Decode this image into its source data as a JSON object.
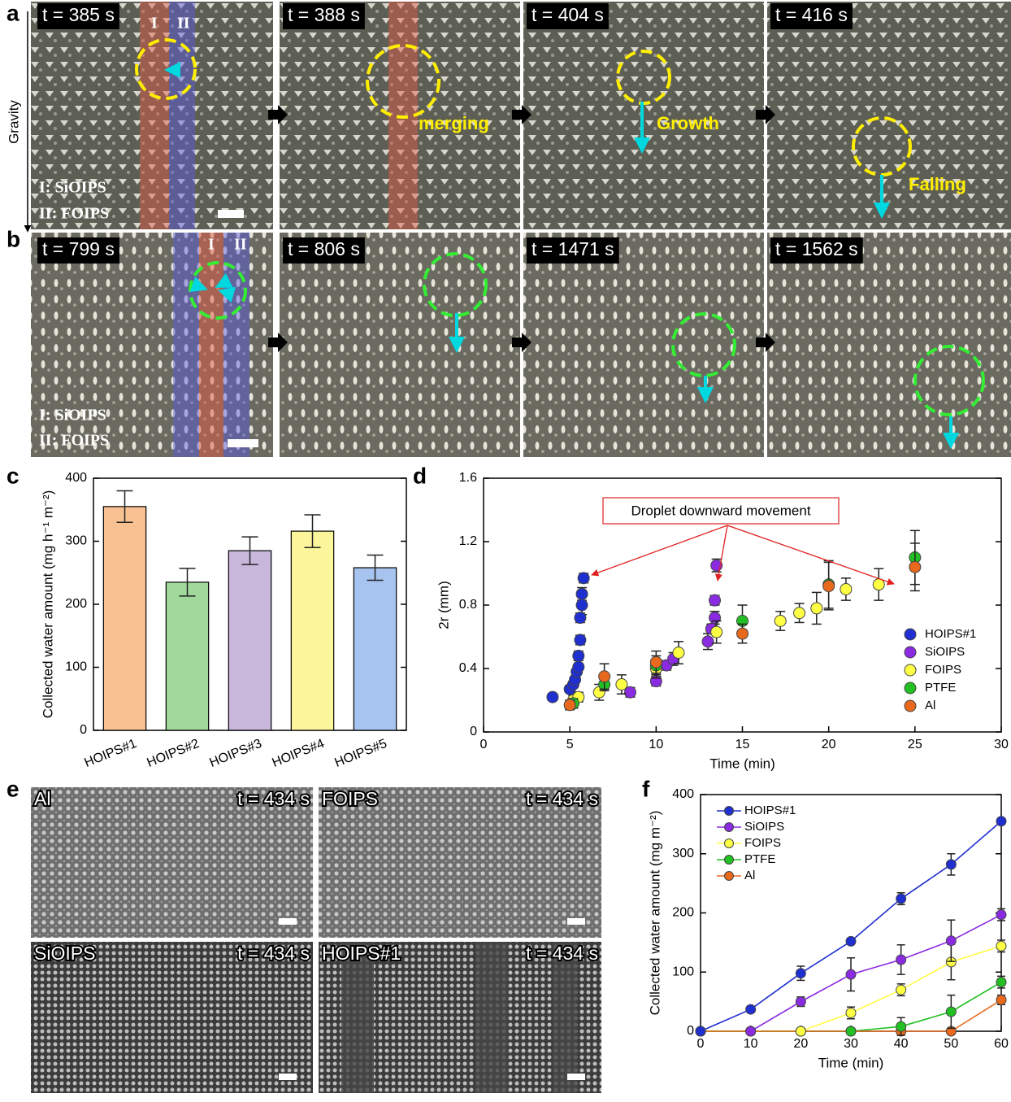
{
  "panels": {
    "a": {
      "letter": "a",
      "frames": [
        "t = 385 s",
        "t = 388 s",
        "t = 404 s",
        "t = 416 s"
      ],
      "band_labels": [
        "I",
        "II"
      ],
      "legend": [
        "I: SiOIPS",
        "II: FOIPS"
      ],
      "annotations": [
        "merging",
        "Growth",
        "Falling"
      ],
      "axis": "Gravity"
    },
    "b": {
      "letter": "b",
      "frames": [
        "t = 799 s",
        "t = 806 s",
        "t = 1471 s",
        "t = 1562 s"
      ],
      "band_labels": [
        "I",
        "II"
      ],
      "legend": [
        "I: SiOIPS",
        "II: FOIPS"
      ]
    },
    "e": {
      "letter": "e",
      "frames": [
        {
          "label": "Al",
          "time": "t = 434 s"
        },
        {
          "label": "FOIPS",
          "time": "t = 434 s"
        },
        {
          "label": "SiOIPS",
          "time": "t = 434 s"
        },
        {
          "label": "HOIPS#1",
          "time": "t = 434 s"
        }
      ]
    }
  },
  "chart_data": [
    {
      "type": "bar",
      "panel_letter": "c",
      "y_label": "Collected water amount (mg h⁻¹ m⁻²)",
      "categories": [
        "HOIPS#1",
        "HOIPS#2",
        "HOIPS#3",
        "HOIPS#4",
        "HOIPS#5"
      ],
      "values": [
        355,
        235,
        285,
        316,
        258
      ],
      "errors": [
        25,
        22,
        22,
        26,
        20
      ],
      "colors": [
        "#f8c192",
        "#a0d99b",
        "#c8b6db",
        "#fbf69c",
        "#a7c3ef"
      ],
      "ylim": [
        0,
        400
      ],
      "yticks": [
        0,
        100,
        200,
        300,
        400
      ]
    },
    {
      "type": "scatter",
      "panel_letter": "d",
      "x_label": "Time (min)",
      "y_label": "2r (mm)",
      "annotation": "Droplet downward movement",
      "xlim": [
        0,
        30
      ],
      "xticks": [
        0,
        5,
        10,
        15,
        20,
        25,
        30
      ],
      "ylim": [
        0,
        1.6
      ],
      "yticks": [
        0,
        0.4,
        0.8,
        1.2,
        1.6
      ],
      "legend": "right",
      "series": [
        {
          "name": "HOIPS#1",
          "color": "#1f2fd0",
          "x": [
            4,
            5,
            5.2,
            5.3,
            5.4,
            5.5,
            5.5,
            5.6,
            5.6,
            5.7,
            5.7,
            5.8
          ],
          "values": [
            0.22,
            0.27,
            0.3,
            0.33,
            0.38,
            0.41,
            0.48,
            0.58,
            0.72,
            0.8,
            0.87,
            0.97
          ],
          "errors": [
            0.02,
            0.02,
            0.02,
            0.02,
            0.02,
            0.02,
            0.03,
            0.03,
            0.03,
            0.06,
            0.04,
            0.03
          ]
        },
        {
          "name": "SiOIPS",
          "color": "#8a2be2",
          "x": [
            8.5,
            10,
            10.6,
            11,
            13,
            13.2,
            13.4,
            13.4,
            13.5
          ],
          "values": [
            0.25,
            0.32,
            0.42,
            0.46,
            0.57,
            0.65,
            0.72,
            0.83,
            1.05
          ],
          "errors": [
            0.03,
            0.03,
            0.03,
            0.04,
            0.05,
            0.03,
            0.04,
            0.03,
            0.04
          ]
        },
        {
          "name": "FOIPS",
          "color": "#ffff44",
          "x": [
            5.2,
            5.5,
            6.7,
            8,
            10,
            11.3,
            13.5,
            17.2,
            18.3,
            19.3,
            21,
            22.9
          ],
          "values": [
            0.2,
            0.22,
            0.25,
            0.3,
            0.4,
            0.5,
            0.63,
            0.7,
            0.75,
            0.78,
            0.9,
            0.93
          ],
          "errors": [
            0.03,
            0.03,
            0.05,
            0.06,
            0.06,
            0.07,
            0.07,
            0.06,
            0.06,
            0.1,
            0.07,
            0.1
          ]
        },
        {
          "name": "PTFE",
          "color": "#22c022",
          "x": [
            5.2,
            7,
            10,
            15,
            20,
            25
          ],
          "values": [
            0.18,
            0.3,
            0.42,
            0.7,
            0.93,
            1.1
          ],
          "errors": [
            0.03,
            0.04,
            0.06,
            0.1,
            0.15,
            0.17
          ]
        },
        {
          "name": "Al",
          "color": "#e8691d",
          "x": [
            5,
            7,
            10,
            15,
            20,
            25
          ],
          "values": [
            0.17,
            0.35,
            0.44,
            0.62,
            0.92,
            1.04
          ],
          "errors": [
            0.03,
            0.08,
            0.07,
            0.06,
            0.15,
            0.15
          ]
        }
      ]
    },
    {
      "type": "line",
      "panel_letter": "f",
      "x_label": "Time (min)",
      "y_label": "Collected water amount (mg m⁻²)",
      "x": [
        0,
        10,
        20,
        30,
        40,
        50,
        60
      ],
      "xlim": [
        0,
        60
      ],
      "xticks": [
        0,
        10,
        20,
        30,
        40,
        50,
        60
      ],
      "ylim": [
        0,
        400
      ],
      "yticks": [
        0,
        100,
        200,
        300,
        400
      ],
      "legend": "upper left",
      "series": [
        {
          "name": "HOIPS#1",
          "color": "#1f2fd0",
          "values": [
            0,
            37,
            98,
            152,
            224,
            282,
            355
          ],
          "errors": [
            0,
            5,
            12,
            5,
            10,
            18,
            5
          ]
        },
        {
          "name": "SiOIPS",
          "color": "#8a2be2",
          "values": [
            0,
            0,
            50,
            96,
            121,
            153,
            197
          ],
          "errors": [
            0,
            0,
            8,
            28,
            25,
            35,
            10
          ]
        },
        {
          "name": "FOIPS",
          "color": "#ffff44",
          "values": [
            0,
            0,
            0,
            31,
            70,
            117,
            144
          ],
          "errors": [
            0,
            0,
            0,
            10,
            10,
            30,
            10
          ]
        },
        {
          "name": "PTFE",
          "color": "#22c022",
          "values": [
            0,
            0,
            0,
            0,
            8,
            33,
            83
          ],
          "errors": [
            0,
            0,
            0,
            0,
            15,
            28,
            10
          ]
        },
        {
          "name": "Al",
          "color": "#e8691d",
          "values": [
            0,
            0,
            0,
            0,
            0,
            0,
            53
          ],
          "errors": [
            0,
            0,
            0,
            0,
            0,
            0,
            8
          ]
        }
      ]
    }
  ]
}
